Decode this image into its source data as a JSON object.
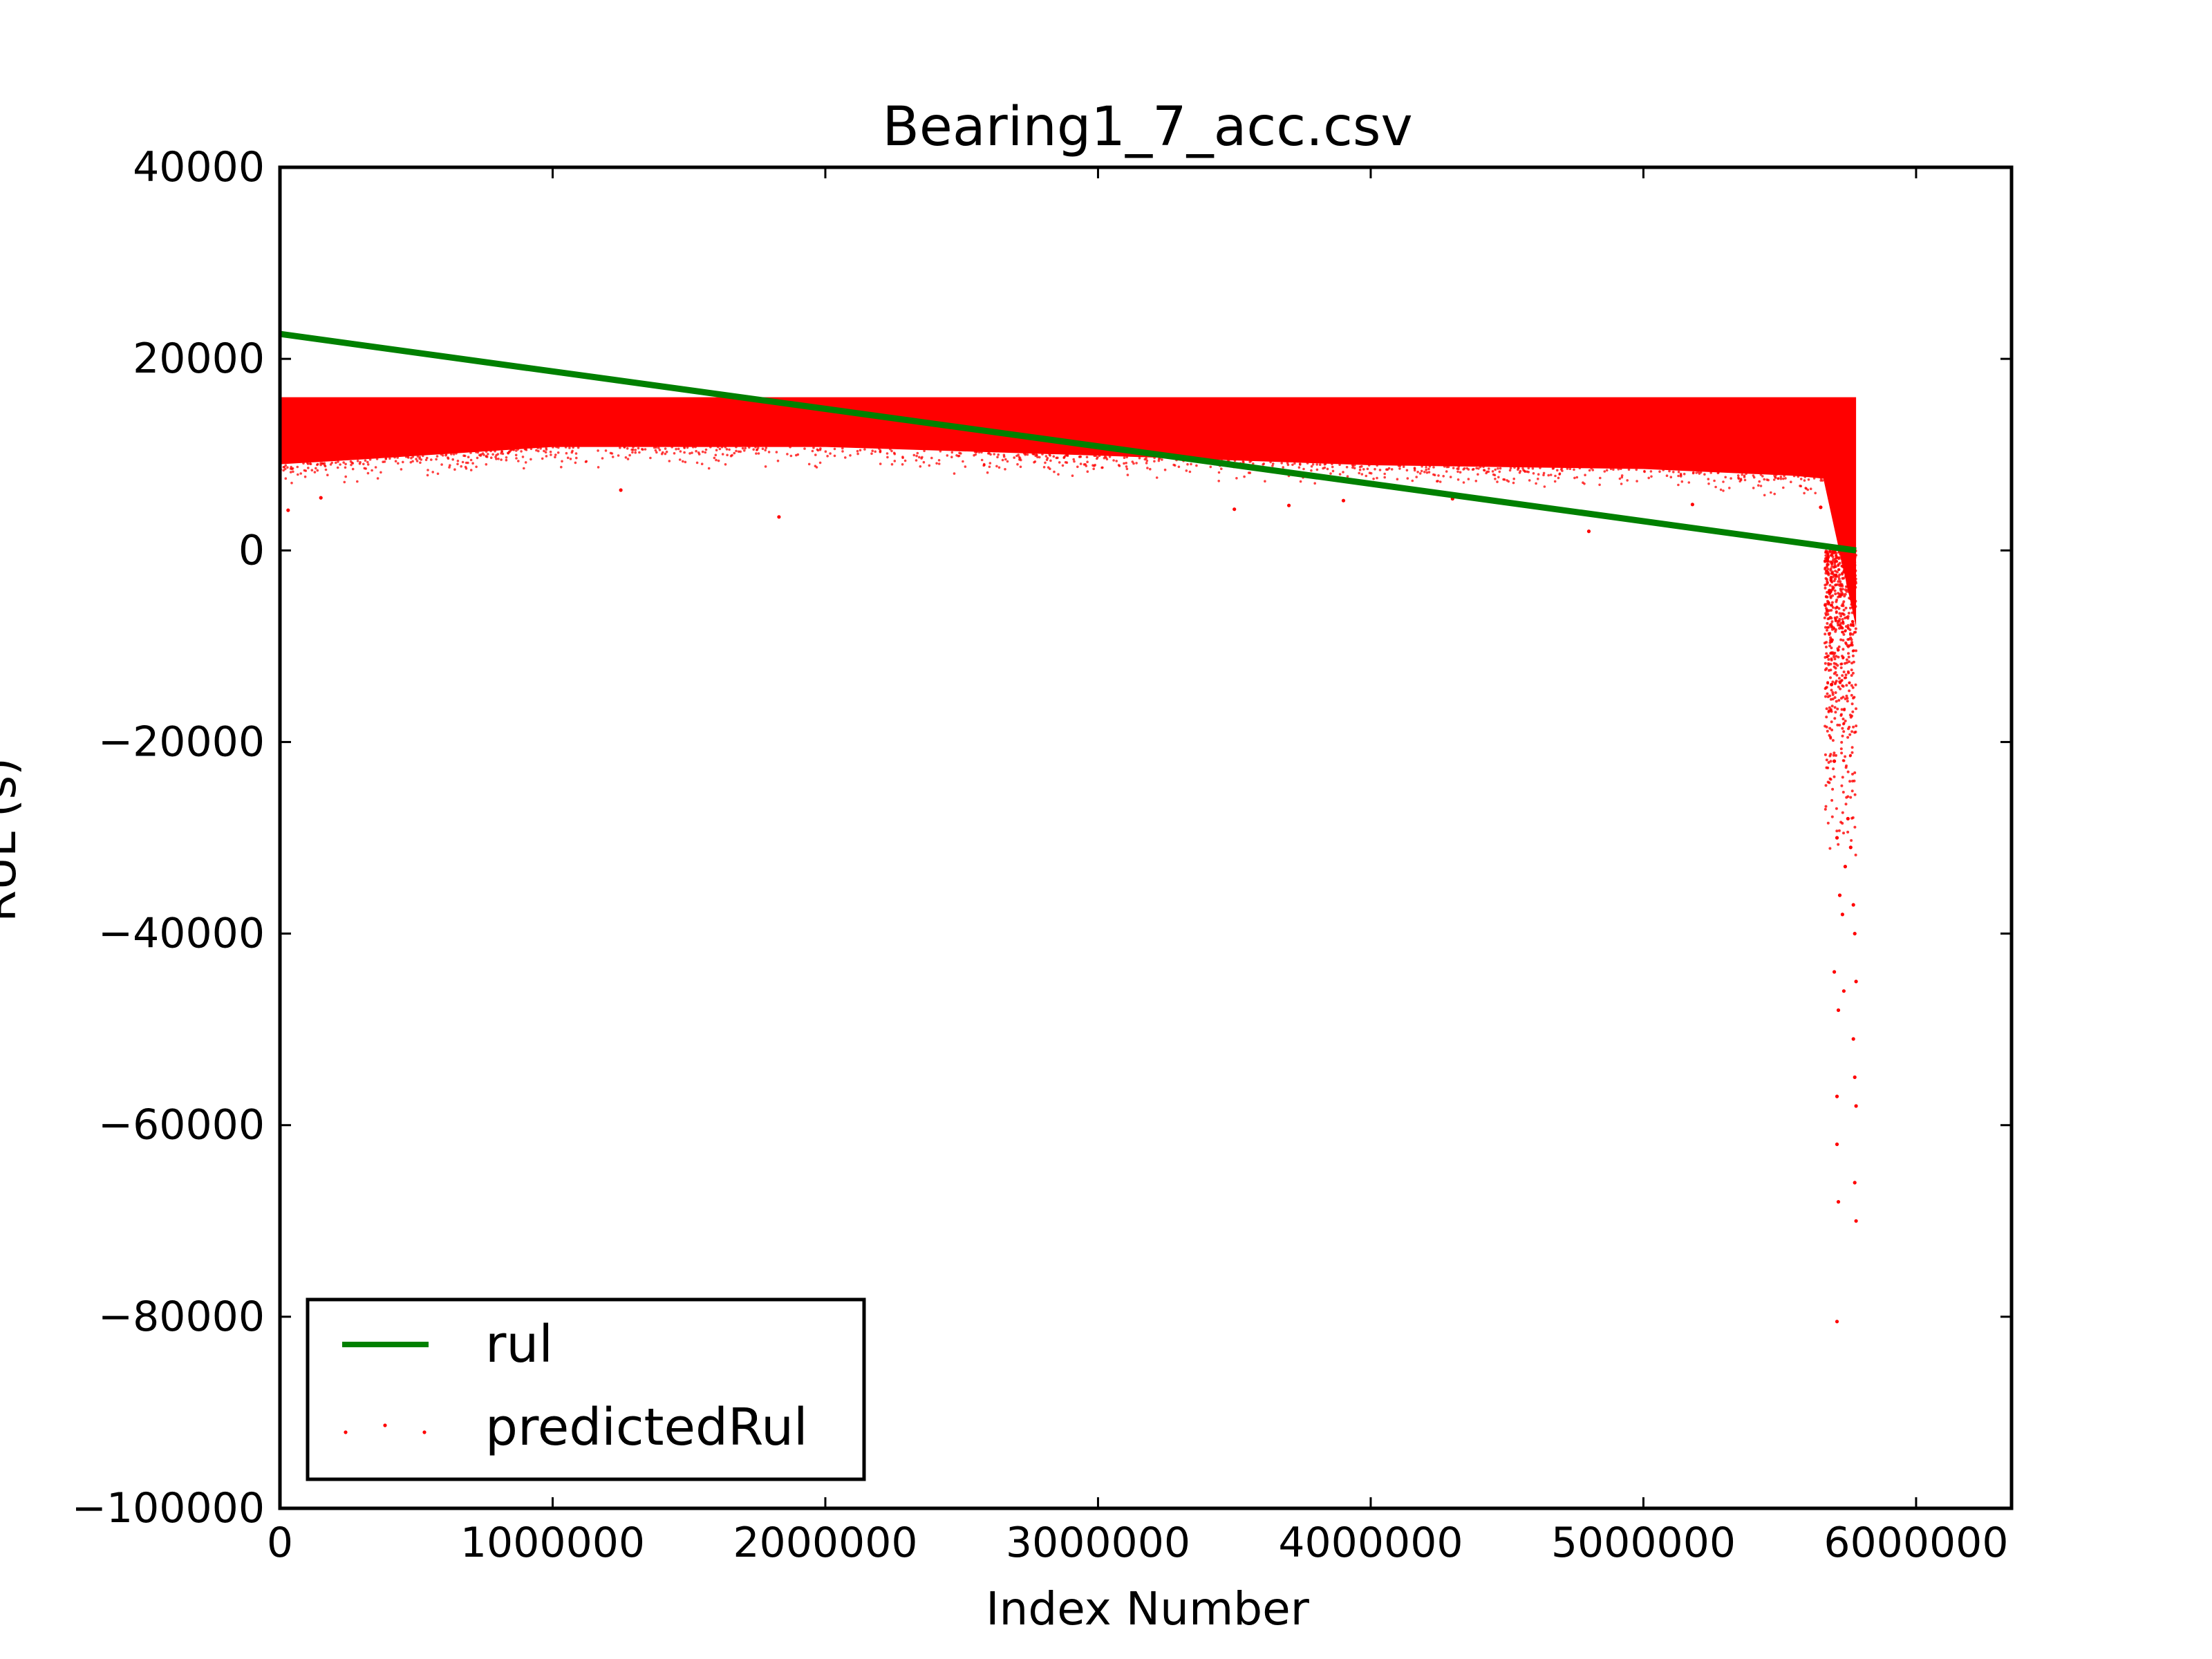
{
  "chart_data": {
    "type": "scatter",
    "title": "Bearing1_7_acc.csv",
    "xlabel": "Index Number",
    "ylabel": "RUL (s)",
    "xlim": [
      0,
      6350000
    ],
    "ylim": [
      -100000,
      40000
    ],
    "x_ticks": [
      0,
      1000000,
      2000000,
      3000000,
      4000000,
      5000000,
      6000000
    ],
    "x_tick_labels": [
      "0",
      "1000000",
      "2000000",
      "3000000",
      "4000000",
      "5000000",
      "6000000"
    ],
    "y_ticks": [
      40000,
      20000,
      0,
      -20000,
      -40000,
      -60000,
      -80000,
      -100000
    ],
    "y_tick_labels": [
      "40000",
      "20000",
      "0",
      "−20000",
      "−40000",
      "−60000",
      "−80000",
      "−100000"
    ],
    "grid": false,
    "legend_position": "lower left",
    "series": [
      {
        "name": "rul",
        "kind": "line",
        "color": "#008000",
        "x": [
          0,
          5780000
        ],
        "y": [
          22600,
          0
        ]
      },
      {
        "name": "predictedRul",
        "kind": "scatter",
        "color": "#ff0000",
        "band": {
          "x": [
            0,
            5780000
          ],
          "upper": 16000,
          "lower_edge": {
            "x": [
              0,
              300000,
              1000000,
              2000000,
              3000000,
              4000000,
              5000000,
              5550000,
              5660000
            ],
            "y": [
              9000,
              9500,
              10800,
              10800,
              9900,
              8900,
              8500,
              7800,
              7500
            ]
          }
        },
        "points": [
          {
            "x": 30000,
            "y": 4200
          },
          {
            "x": 150000,
            "y": 5500
          },
          {
            "x": 1830000,
            "y": 3500
          },
          {
            "x": 1250000,
            "y": 6300
          },
          {
            "x": 3500000,
            "y": 4300
          },
          {
            "x": 3700000,
            "y": 4700
          },
          {
            "x": 3900000,
            "y": 5200
          },
          {
            "x": 4300000,
            "y": 5400
          },
          {
            "x": 4800000,
            "y": 2000
          },
          {
            "x": 5180000,
            "y": 4800
          },
          {
            "x": 5650000,
            "y": 4500
          },
          {
            "x": 5690000,
            "y": -14000
          },
          {
            "x": 5700000,
            "y": -22000
          },
          {
            "x": 5710000,
            "y": -30000
          },
          {
            "x": 5720000,
            "y": -36000
          },
          {
            "x": 5730000,
            "y": -38000
          },
          {
            "x": 5740000,
            "y": -33000
          },
          {
            "x": 5750000,
            "y": -28000
          },
          {
            "x": 5760000,
            "y": -31000
          },
          {
            "x": 5770000,
            "y": -37000
          },
          {
            "x": 5700000,
            "y": -44000
          },
          {
            "x": 5715000,
            "y": -48000
          },
          {
            "x": 5735000,
            "y": -46000
          },
          {
            "x": 5775000,
            "y": -40000
          },
          {
            "x": 5780000,
            "y": -45000
          },
          {
            "x": 5710000,
            "y": -57000
          },
          {
            "x": 5710000,
            "y": -62000
          },
          {
            "x": 5715000,
            "y": -68000
          },
          {
            "x": 5770000,
            "y": -51000
          },
          {
            "x": 5775000,
            "y": -55000
          },
          {
            "x": 5780000,
            "y": -58000
          },
          {
            "x": 5775000,
            "y": -66000
          },
          {
            "x": 5780000,
            "y": -70000
          },
          {
            "x": 5710000,
            "y": -80500
          }
        ]
      }
    ],
    "legend": [
      {
        "label": "rul",
        "kind": "line"
      },
      {
        "label": "predictedRul",
        "kind": "scatter"
      }
    ]
  }
}
